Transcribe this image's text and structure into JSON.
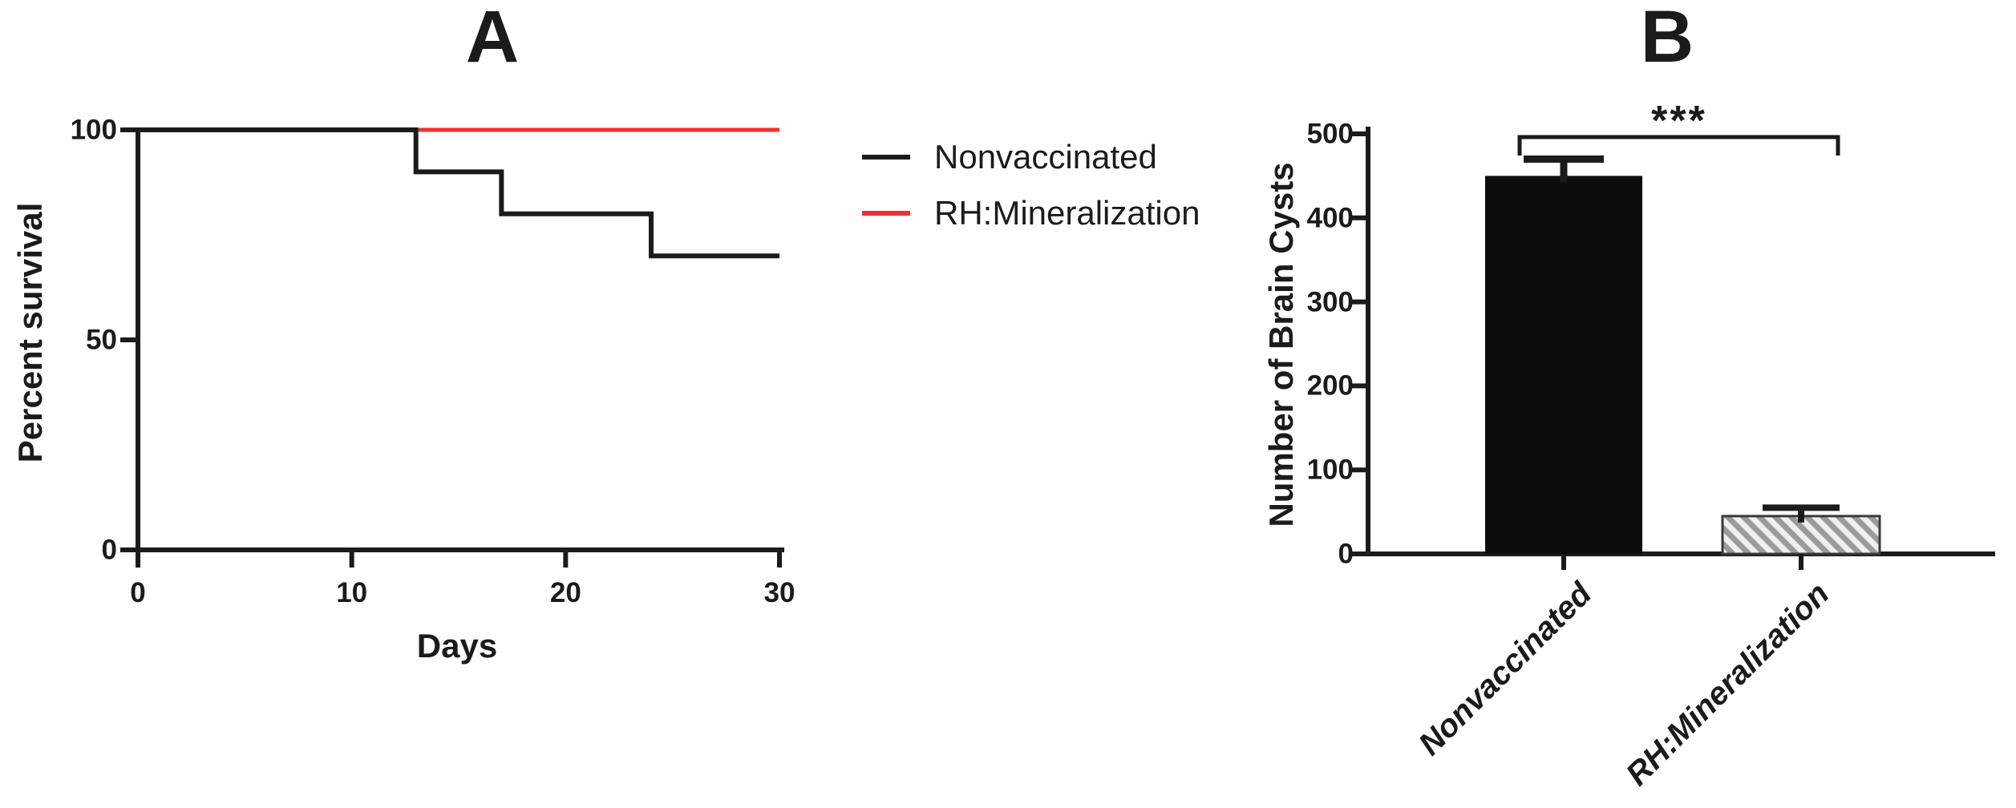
{
  "chart_data": [
    {
      "panel": "A",
      "type": "line",
      "subtype": "kaplan_meier_step",
      "title": "A",
      "xlabel": "Days",
      "ylabel": "Percent survival",
      "xlim": [
        0,
        30
      ],
      "ylim": [
        0,
        100
      ],
      "x_ticks": [
        0,
        10,
        20,
        30
      ],
      "y_ticks": [
        0,
        50,
        100
      ],
      "grid": false,
      "legend_position": "right-of-plot",
      "series": [
        {
          "name": "Nonvaccinated",
          "color": "#1b1b1b",
          "points": [
            [
              0,
              100
            ],
            [
              13,
              100
            ],
            [
              13,
              90
            ],
            [
              17,
              90
            ],
            [
              17,
              80
            ],
            [
              24,
              80
            ],
            [
              24,
              70
            ],
            [
              30,
              70
            ]
          ]
        },
        {
          "name": "RH:Mineralization",
          "color": "#f23030",
          "points": [
            [
              0,
              100
            ],
            [
              30,
              100
            ]
          ]
        }
      ]
    },
    {
      "panel": "B",
      "type": "bar",
      "title": "B",
      "xlabel": "",
      "ylabel": "Number of Brain Cysts",
      "ylim": [
        0,
        500
      ],
      "y_ticks": [
        0,
        100,
        200,
        300,
        400,
        500
      ],
      "grid": false,
      "categories": [
        "Nonvaccinated",
        "RH:Mineralization"
      ],
      "values": [
        450,
        45
      ],
      "errors": [
        20,
        10
      ],
      "error_direction": "upper",
      "bar_styles": [
        {
          "fill": "solid",
          "color": "#0d0d0d"
        },
        {
          "fill": "diagonal-hatch",
          "stripe_color": "#9b9b9b",
          "background": "#efefef",
          "border": "#3a3a3a"
        }
      ],
      "significance": {
        "label": "***",
        "between": [
          "Nonvaccinated",
          "RH:Mineralization"
        ]
      }
    }
  ]
}
